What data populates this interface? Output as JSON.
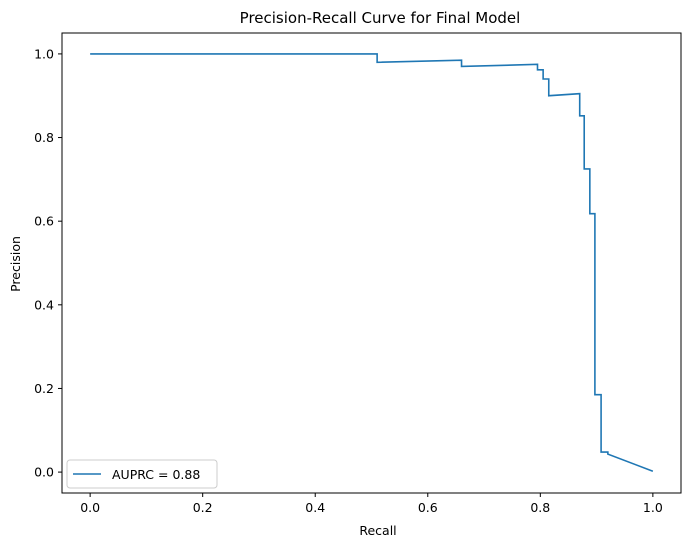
{
  "chart_data": {
    "type": "line",
    "title": "Precision-Recall Curve for Final Model",
    "xlabel": "Recall",
    "ylabel": "Precision",
    "xlim": [
      -0.05,
      1.05
    ],
    "ylim": [
      -0.05,
      1.05
    ],
    "xticks": [
      0.0,
      0.2,
      0.4,
      0.6,
      0.8,
      1.0
    ],
    "xtick_labels": [
      "0.0",
      "0.2",
      "0.4",
      "0.6",
      "0.8",
      "1.0"
    ],
    "yticks": [
      0.0,
      0.2,
      0.4,
      0.6,
      0.8,
      1.0
    ],
    "ytick_labels": [
      "0.0",
      "0.2",
      "0.4",
      "0.6",
      "0.8",
      "1.0"
    ],
    "grid": false,
    "legend": {
      "position": "lower-left",
      "entries": [
        "AUPRC = 0.88"
      ]
    },
    "colors": {
      "series": "#1f77b4"
    },
    "series": [
      {
        "name": "AUPRC = 0.88",
        "x": [
          0.0,
          0.51,
          0.51,
          0.66,
          0.66,
          0.795,
          0.795,
          0.805,
          0.805,
          0.815,
          0.815,
          0.87,
          0.87,
          0.878,
          0.878,
          0.888,
          0.888,
          0.897,
          0.897,
          0.908,
          0.908,
          0.92,
          0.92,
          1.0
        ],
        "y": [
          1.0,
          1.0,
          0.98,
          0.985,
          0.97,
          0.975,
          0.962,
          0.962,
          0.94,
          0.94,
          0.9,
          0.905,
          0.852,
          0.852,
          0.725,
          0.725,
          0.618,
          0.618,
          0.185,
          0.185,
          0.048,
          0.048,
          0.043,
          0.002
        ]
      }
    ]
  }
}
